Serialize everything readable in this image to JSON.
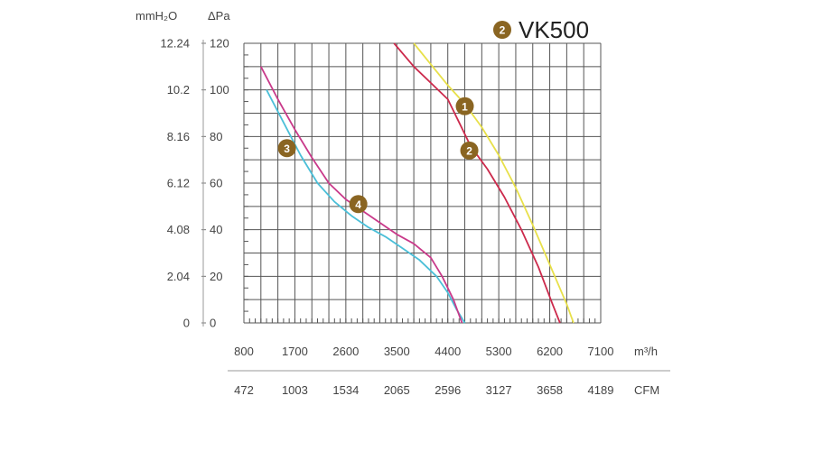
{
  "chart_data": {
    "type": "line",
    "title": "VK500",
    "title_badge": "2",
    "grid": true,
    "y_axis_pa": {
      "label": "ΔPa",
      "ticks": [
        "0",
        "20",
        "40",
        "60",
        "80",
        "100",
        "120"
      ],
      "range": [
        0,
        120
      ]
    },
    "y_axis_mmh2o": {
      "label": "mmH₂O",
      "ticks": [
        "0",
        "2.04",
        "4.08",
        "6.12",
        "8.16",
        "10.2",
        "12.24"
      ]
    },
    "x_axis_m3h": {
      "unit": "m³/h",
      "ticks": [
        "800",
        "1700",
        "2600",
        "3500",
        "4400",
        "5300",
        "6200",
        "7100"
      ],
      "range": [
        800,
        7100
      ]
    },
    "x_axis_cfm": {
      "unit": "CFM",
      "ticks": [
        "472",
        "1003",
        "1534",
        "2065",
        "2596",
        "3127",
        "3658",
        "4189"
      ]
    },
    "series": [
      {
        "name": "1",
        "color": "#e8e04a",
        "label_at": [
          4700,
          93
        ],
        "points": [
          [
            3800,
            120
          ],
          [
            4100,
            111
          ],
          [
            4400,
            102
          ],
          [
            4700,
            94
          ],
          [
            5000,
            84
          ],
          [
            5300,
            72
          ],
          [
            5600,
            58
          ],
          [
            5900,
            42
          ],
          [
            6200,
            25
          ],
          [
            6500,
            8
          ],
          [
            6620,
            0
          ]
        ]
      },
      {
        "name": "2",
        "color": "#cc2a4c",
        "label_at": [
          4780,
          74
        ],
        "points": [
          [
            3450,
            120
          ],
          [
            3800,
            110
          ],
          [
            4100,
            103
          ],
          [
            4400,
            96
          ],
          [
            4600,
            86
          ],
          [
            4800,
            76
          ],
          [
            5100,
            66
          ],
          [
            5400,
            54
          ],
          [
            5700,
            40
          ],
          [
            6000,
            24
          ],
          [
            6250,
            8
          ],
          [
            6380,
            0
          ]
        ]
      },
      {
        "name": "3",
        "color": "#4bbfd8",
        "label_at": [
          1560,
          75
        ],
        "points": [
          [
            1200,
            100
          ],
          [
            1500,
            86
          ],
          [
            1800,
            72
          ],
          [
            2100,
            60
          ],
          [
            2400,
            52
          ],
          [
            2700,
            46
          ],
          [
            3000,
            41
          ],
          [
            3300,
            37
          ],
          [
            3600,
            32
          ],
          [
            3900,
            27
          ],
          [
            4200,
            20
          ],
          [
            4400,
            13
          ],
          [
            4550,
            6
          ],
          [
            4700,
            0
          ]
        ]
      },
      {
        "name": "4",
        "color": "#c93a8a",
        "label_at": [
          2820,
          51
        ],
        "points": [
          [
            1100,
            110
          ],
          [
            1400,
            96
          ],
          [
            1700,
            83
          ],
          [
            2000,
            71
          ],
          [
            2300,
            60
          ],
          [
            2600,
            53
          ],
          [
            2900,
            48
          ],
          [
            3200,
            43
          ],
          [
            3500,
            38
          ],
          [
            3800,
            34
          ],
          [
            4100,
            28
          ],
          [
            4300,
            20
          ],
          [
            4500,
            10
          ],
          [
            4650,
            0
          ]
        ]
      }
    ]
  }
}
